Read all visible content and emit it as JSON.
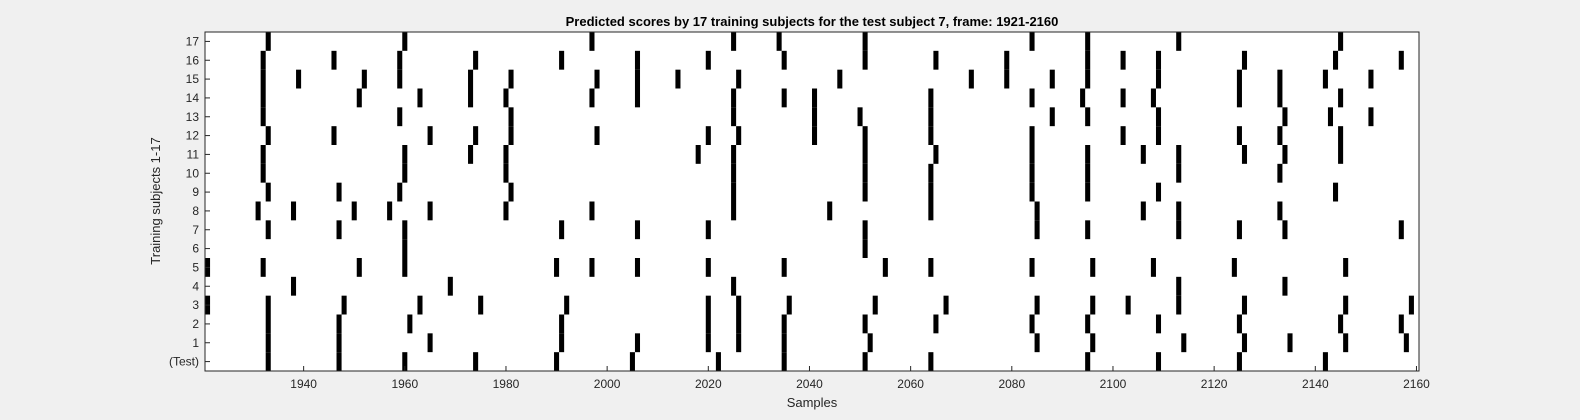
{
  "chart_data": {
    "type": "heatmap",
    "title": "Predicted scores by 17 training subjects for the test subject 7, frame: 1921-2160",
    "xlabel": "Samples",
    "ylabel": "Training subjects 1-17",
    "xlim": [
      1921,
      2160
    ],
    "xticks": [
      1940,
      1960,
      1980,
      2000,
      2020,
      2040,
      2060,
      2080,
      2100,
      2120,
      2140,
      2160
    ],
    "row_labels": [
      "(Test)",
      "1",
      "2",
      "3",
      "4",
      "5",
      "6",
      "7",
      "8",
      "9",
      "10",
      "11",
      "12",
      "13",
      "14",
      "15",
      "16",
      "17"
    ],
    "background_color": "#ffffff",
    "mark_color": "#000000",
    "grid": false,
    "rows": [
      {
        "label": "(Test)",
        "x": [
          1933,
          1947,
          1960,
          1974,
          1990,
          2005,
          2022,
          2035,
          2051,
          2064,
          2095,
          2109,
          2125,
          2142
        ]
      },
      {
        "label": "1",
        "x": [
          1933,
          1947,
          1965,
          1991,
          2006,
          2020,
          2026,
          2035,
          2052,
          2085,
          2096,
          2114,
          2126,
          2135,
          2146,
          2158
        ]
      },
      {
        "label": "2",
        "x": [
          1933,
          1947,
          1961,
          1991,
          2020,
          2026,
          2035,
          2051,
          2065,
          2084,
          2095,
          2109,
          2125,
          2145,
          2157
        ]
      },
      {
        "label": "3",
        "x": [
          1921,
          1933,
          1948,
          1963,
          1975,
          1992,
          2020,
          2026,
          2036,
          2053,
          2067,
          2085,
          2096,
          2103,
          2113,
          2126,
          2146,
          2159
        ]
      },
      {
        "label": "4",
        "x": [
          1938,
          1969,
          2025,
          2113,
          2134
        ]
      },
      {
        "label": "5",
        "x": [
          1921,
          1932,
          1951,
          1960,
          1990,
          1997,
          2006,
          2020,
          2035,
          2055,
          2064,
          2084,
          2096,
          2108,
          2124,
          2146
        ]
      },
      {
        "label": "6",
        "x": [
          1960,
          2051
        ]
      },
      {
        "label": "7",
        "x": [
          1933,
          1947,
          1960,
          1991,
          2006,
          2020,
          2051,
          2085,
          2095,
          2113,
          2125,
          2134,
          2157
        ]
      },
      {
        "label": "8",
        "x": [
          1931,
          1938,
          1950,
          1957,
          1965,
          1980,
          1997,
          2025,
          2044,
          2064,
          2085,
          2106,
          2113,
          2133
        ]
      },
      {
        "label": "9",
        "x": [
          1933,
          1947,
          1959,
          1981,
          2025,
          2051,
          2064,
          2084,
          2095,
          2109,
          2144
        ]
      },
      {
        "label": "10",
        "x": [
          1932,
          1960,
          1980,
          2025,
          2051,
          2064,
          2084,
          2095,
          2113,
          2133
        ]
      },
      {
        "label": "11",
        "x": [
          1932,
          1960,
          1973,
          1980,
          2018,
          2025,
          2051,
          2065,
          2084,
          2095,
          2106,
          2113,
          2126,
          2134,
          2145
        ]
      },
      {
        "label": "12",
        "x": [
          1933,
          1946,
          1965,
          1974,
          1981,
          1998,
          2020,
          2026,
          2041,
          2051,
          2064,
          2084,
          2102,
          2109,
          2125,
          2133,
          2145
        ]
      },
      {
        "label": "13",
        "x": [
          1932,
          1959,
          1981,
          2025,
          2041,
          2050,
          2064,
          2088,
          2095,
          2109,
          2134,
          2143,
          2151
        ]
      },
      {
        "label": "14",
        "x": [
          1932,
          1951,
          1963,
          1973,
          1980,
          1997,
          2006,
          2025,
          2035,
          2041,
          2064,
          2084,
          2094,
          2102,
          2108,
          2125,
          2133,
          2145
        ]
      },
      {
        "label": "15",
        "x": [
          1932,
          1939,
          1952,
          1959,
          1973,
          1981,
          1998,
          2006,
          2014,
          2026,
          2046,
          2072,
          2079,
          2088,
          2095,
          2109,
          2125,
          2133,
          2142,
          2151
        ]
      },
      {
        "label": "16",
        "x": [
          1932,
          1946,
          1959,
          1974,
          1991,
          2006,
          2020,
          2035,
          2051,
          2065,
          2079,
          2095,
          2102,
          2109,
          2126,
          2144,
          2157
        ]
      },
      {
        "label": "17",
        "x": [
          1933,
          1960,
          1997,
          2025,
          2034,
          2051,
          2084,
          2095,
          2113,
          2145
        ]
      }
    ]
  }
}
